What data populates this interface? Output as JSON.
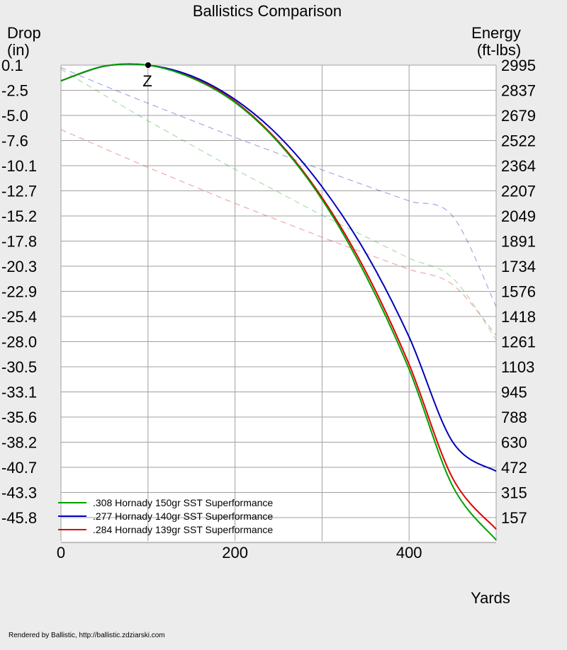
{
  "chart_data": {
    "type": "line",
    "title": "Ballistics Comparison",
    "left_axis_label": [
      "Drop",
      "(in)"
    ],
    "right_axis_label": [
      "Energy",
      "(ft-lbs)"
    ],
    "xlabel": "Yards",
    "zero_marker_label": "Z",
    "zero_range": 100,
    "xlim": [
      0,
      500
    ],
    "x_ticks": [
      0,
      200,
      400
    ],
    "ylim_drop": [
      -48.4,
      0.1
    ],
    "ylim_energy": [
      0,
      2995
    ],
    "drop_ticks": [
      "0.1",
      "-2.5",
      "-5.0",
      "-7.6",
      "-10.1",
      "-12.7",
      "-15.2",
      "-17.8",
      "-20.3",
      "-22.9",
      "-25.4",
      "-28.0",
      "-30.5",
      "-33.1",
      "-35.6",
      "-38.2",
      "-40.7",
      "-43.3",
      "-45.8"
    ],
    "energy_ticks": [
      "2995",
      "2837",
      "2679",
      "2522",
      "2364",
      "2207",
      "2049",
      "1891",
      "1734",
      "1576",
      "1418",
      "1261",
      "1103",
      "945",
      "788",
      "630",
      "472",
      "315",
      "157"
    ],
    "grid": true,
    "legend_position": "bottom-left",
    "x": [
      0,
      50,
      100,
      150,
      200,
      250,
      300,
      350,
      400,
      450,
      500
    ],
    "series": [
      {
        "name": ".308 Hornady 150gr SST Superformance",
        "color": "#00a000",
        "drop": [
          -1.5,
          0.0,
          0.1,
          -1.2,
          -3.7,
          -7.8,
          -13.6,
          -21.3,
          -30.9,
          -42.8,
          -48.3
        ],
        "energy": [
          2969,
          2805,
          2645,
          2492,
          2340,
          2195,
          2050,
          1915,
          1780,
          1655,
          1268
        ]
      },
      {
        "name": ".277 Hornady 140gr SST Superformance",
        "color": "#0000bb",
        "drop": [
          -1.5,
          0.0,
          0.1,
          -1.0,
          -3.4,
          -7.1,
          -12.3,
          -19.0,
          -27.6,
          -38.3,
          -41.3
        ],
        "energy": [
          2980,
          2865,
          2755,
          2648,
          2540,
          2438,
          2336,
          2237,
          2140,
          2045,
          1475
        ]
      },
      {
        "name": ".284 Hornady 139gr SST Superformance",
        "color": "#e00000",
        "drop": [
          -1.5,
          0.0,
          0.1,
          -1.1,
          -3.6,
          -7.7,
          -13.4,
          -20.9,
          -30.4,
          -42.0,
          -47.2
        ],
        "energy": [
          2590,
          2470,
          2352,
          2238,
          2125,
          2018,
          1912,
          1810,
          1710,
          1614,
          1295
        ]
      }
    ]
  },
  "footer": {
    "credit": "Rendered by Ballistic, http://ballistic.zdziarski.com"
  }
}
